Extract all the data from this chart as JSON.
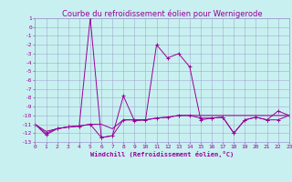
{
  "title": "Courbe du refroidissement éolien pour Wernigerode",
  "xlabel": "Windchill (Refroidissement éolien,°C)",
  "x_hours": [
    0,
    1,
    2,
    3,
    4,
    5,
    6,
    7,
    8,
    9,
    10,
    11,
    12,
    13,
    14,
    15,
    16,
    17,
    18,
    19,
    20,
    21,
    22,
    23
  ],
  "line1": [
    -11.0,
    -12.2,
    -11.5,
    -11.3,
    -11.2,
    1.0,
    -12.5,
    -12.3,
    -7.8,
    -10.6,
    -10.5,
    -2.0,
    -3.5,
    -3.0,
    -4.5,
    -10.5,
    -10.3,
    -10.2,
    -12.0,
    -10.5,
    -10.2,
    -10.5,
    -9.5,
    -10.0
  ],
  "line2": [
    -11.0,
    -12.0,
    -11.5,
    -11.3,
    -11.2,
    -11.0,
    -12.5,
    -12.3,
    -10.5,
    -10.5,
    -10.5,
    -10.3,
    -10.2,
    -10.0,
    -10.0,
    -10.3,
    -10.3,
    -10.2,
    -12.0,
    -10.5,
    -10.2,
    -10.5,
    -10.5,
    -10.0
  ],
  "line3": [
    -11.0,
    -11.8,
    -11.5,
    -11.3,
    -11.2,
    -11.0,
    -11.0,
    -11.5,
    -10.5,
    -10.5,
    -10.5,
    -10.3,
    -10.2,
    -10.0,
    -10.0,
    -10.0,
    -10.0,
    -10.0,
    -10.0,
    -10.0,
    -10.0,
    -10.0,
    -10.0,
    -10.0
  ],
  "ylim_min": -13,
  "ylim_max": 1,
  "bg_color": "#c8f0f0",
  "grid_color": "#9999cc",
  "line_color": "#990099",
  "title_fontsize": 6,
  "axis_fontsize": 5,
  "tick_fontsize": 4.5
}
